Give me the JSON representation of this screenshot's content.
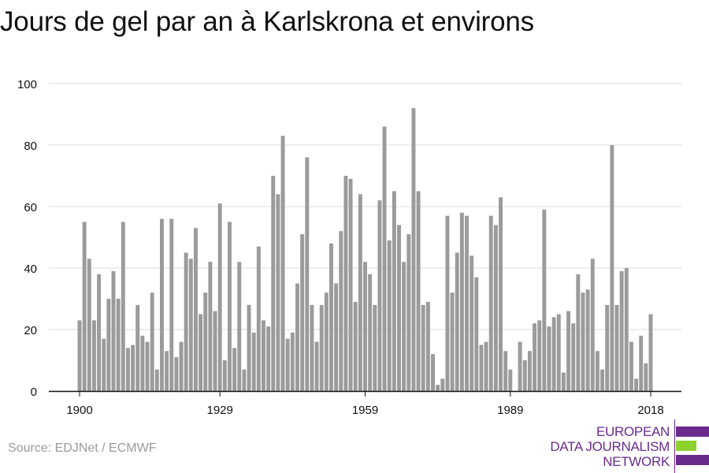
{
  "title": "Jours de gel par an à Karlskrona et environs",
  "source": "Source: EDJNet / ECMWF",
  "logo": {
    "lines": [
      "EUROPEAN",
      "DATA JOURNALISM",
      "NETWORK"
    ],
    "colors": {
      "purple": "#6a2a8e",
      "green": "#8dd12f"
    }
  },
  "colors": {
    "bar": "#9b9b9b",
    "grid": "#dddddd",
    "axis": "#111111"
  },
  "chart_data": {
    "type": "bar",
    "title": "Jours de gel par an à Karlskrona et environs",
    "xlabel": "",
    "ylabel": "",
    "ylim": [
      0,
      100
    ],
    "yticks": [
      0,
      20,
      40,
      60,
      80,
      100
    ],
    "xticks": [
      1900,
      1929,
      1959,
      1989,
      2018
    ],
    "grid": true,
    "x": [
      1900,
      1901,
      1902,
      1903,
      1904,
      1905,
      1906,
      1907,
      1908,
      1909,
      1910,
      1911,
      1912,
      1913,
      1914,
      1915,
      1916,
      1917,
      1918,
      1919,
      1920,
      1921,
      1922,
      1923,
      1924,
      1925,
      1926,
      1927,
      1928,
      1929,
      1930,
      1931,
      1932,
      1933,
      1934,
      1935,
      1936,
      1937,
      1938,
      1939,
      1940,
      1941,
      1942,
      1943,
      1944,
      1945,
      1946,
      1947,
      1948,
      1949,
      1950,
      1951,
      1952,
      1953,
      1954,
      1955,
      1956,
      1957,
      1958,
      1959,
      1960,
      1961,
      1962,
      1963,
      1964,
      1965,
      1966,
      1967,
      1968,
      1969,
      1970,
      1971,
      1972,
      1973,
      1974,
      1975,
      1976,
      1977,
      1978,
      1979,
      1980,
      1981,
      1982,
      1983,
      1984,
      1985,
      1986,
      1987,
      1988,
      1989,
      1990,
      1991,
      1992,
      1993,
      1994,
      1995,
      1996,
      1997,
      1998,
      1999,
      2000,
      2001,
      2002,
      2003,
      2004,
      2005,
      2006,
      2007,
      2008,
      2009,
      2010,
      2011,
      2012,
      2013,
      2014,
      2015,
      2016,
      2017,
      2018
    ],
    "values": [
      23,
      55,
      43,
      23,
      38,
      17,
      30,
      39,
      30,
      55,
      14,
      15,
      28,
      18,
      16,
      32,
      7,
      56,
      13,
      56,
      11,
      16,
      45,
      43,
      53,
      25,
      32,
      42,
      26,
      61,
      10,
      55,
      14,
      42,
      7,
      28,
      19,
      47,
      23,
      21,
      70,
      64,
      83,
      17,
      19,
      35,
      51,
      76,
      28,
      16,
      28,
      32,
      48,
      35,
      52,
      70,
      69,
      29,
      64,
      42,
      38,
      28,
      62,
      86,
      49,
      65,
      54,
      42,
      51,
      92,
      65,
      28,
      29,
      12,
      2,
      4,
      57,
      32,
      45,
      58,
      57,
      44,
      37,
      15,
      16,
      57,
      54,
      63,
      13,
      7,
      0,
      16,
      10,
      13,
      22,
      23,
      59,
      21,
      24,
      25,
      6,
      26,
      22,
      38,
      32,
      33,
      43,
      13,
      7,
      28,
      80,
      28,
      39,
      40,
      16,
      4,
      18,
      9,
      25
    ]
  }
}
